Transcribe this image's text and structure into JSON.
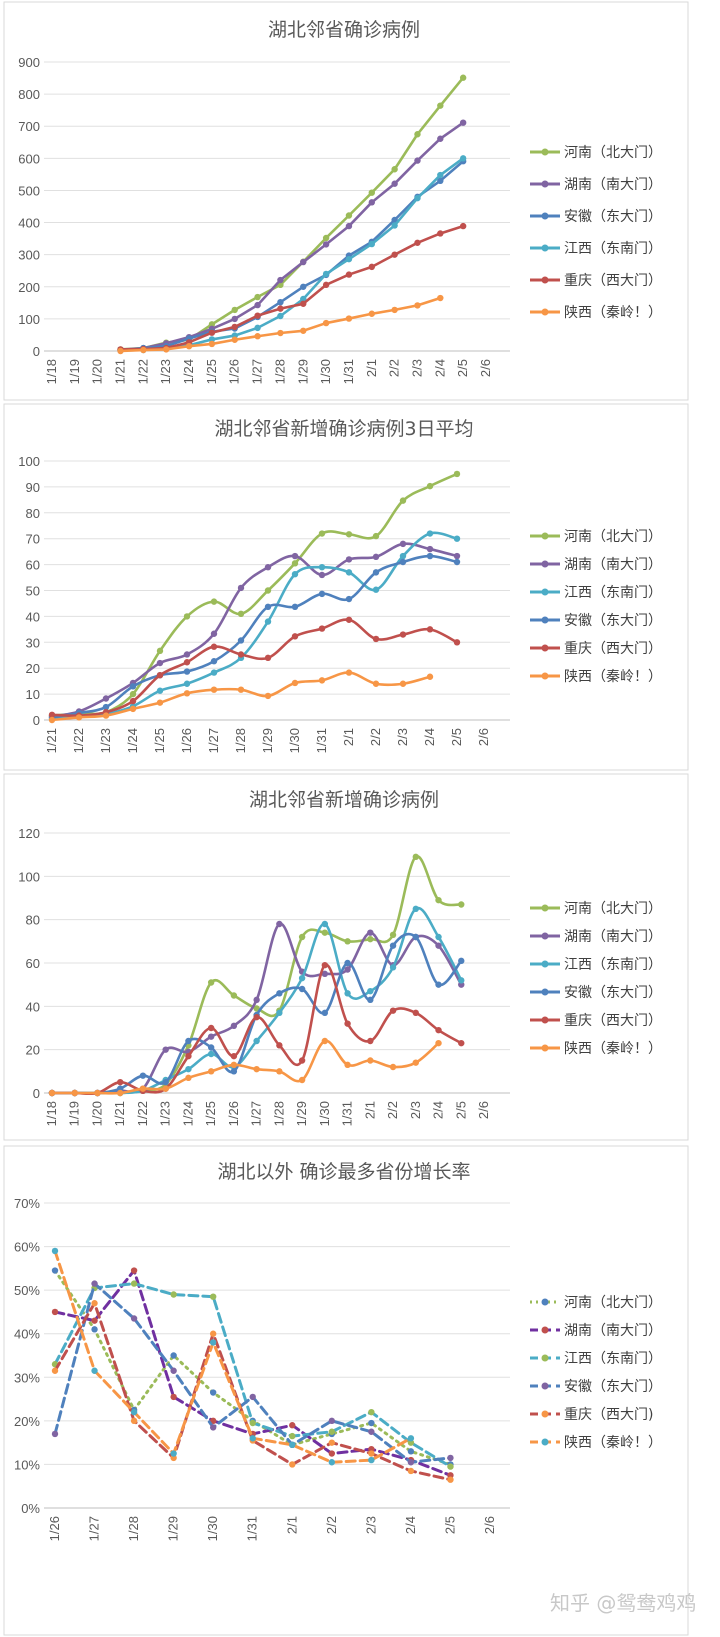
{
  "watermark": "知乎 @鸳鸯鸡鸡",
  "chart_data": [
    {
      "type": "line",
      "title": "湖北邻省确诊病例",
      "categories": [
        "1/18",
        "1/19",
        "1/20",
        "1/21",
        "1/22",
        "1/23",
        "1/24",
        "1/25",
        "1/26",
        "1/27",
        "1/28",
        "1/29",
        "1/30",
        "1/31",
        "2/1",
        "2/2",
        "2/3",
        "2/4",
        "2/5",
        "2/6"
      ],
      "ylim": [
        0,
        900
      ],
      "yticks": [
        0,
        100,
        200,
        300,
        400,
        500,
        600,
        700,
        800,
        900
      ],
      "ytick_labels": [
        "0",
        "100",
        "200",
        "300",
        "400",
        "500",
        "600",
        "700",
        "800",
        "900"
      ],
      "grid": true,
      "legend": "right",
      "series": [
        {
          "name": "河南（北大门）",
          "color": "#9BBB59",
          "values": [
            null,
            null,
            null,
            5,
            9,
            26,
            35,
            83,
            128,
            168,
            206,
            278,
            352,
            422,
            493,
            566,
            675,
            764,
            851,
            null
          ]
        },
        {
          "name": "湖南（南大门）",
          "color": "#8064A2",
          "values": [
            null,
            null,
            null,
            4,
            9,
            24,
            43,
            69,
            100,
            143,
            221,
            277,
            332,
            389,
            463,
            521,
            593,
            661,
            711,
            null
          ]
        },
        {
          "name": "安徽（东大门）",
          "color": "#4F81BD",
          "values": [
            null,
            null,
            null,
            1,
            9,
            15,
            39,
            60,
            70,
            106,
            152,
            200,
            237,
            297,
            340,
            408,
            480,
            530,
            591,
            null
          ]
        },
        {
          "name": "江西（东南门）",
          "color": "#4BACC6",
          "values": [
            null,
            null,
            null,
            2,
            3,
            7,
            18,
            36,
            48,
            72,
            109,
            162,
            240,
            286,
            333,
            391,
            476,
            548,
            600,
            null
          ]
        },
        {
          "name": "重庆（西大门）",
          "color": "#C0504D",
          "values": [
            null,
            null,
            null,
            5,
            6,
            9,
            27,
            57,
            75,
            110,
            132,
            147,
            206,
            238,
            262,
            300,
            337,
            366,
            389,
            null
          ]
        },
        {
          "name": "陕西（秦岭！）",
          "color": "#F79646",
          "values": [
            null,
            null,
            null,
            0,
            3,
            5,
            15,
            22,
            35,
            46,
            56,
            63,
            87,
            101,
            116,
            128,
            142,
            165,
            null,
            null
          ]
        }
      ]
    },
    {
      "type": "line",
      "title": "湖北邻省新增确诊病例3日平均",
      "categories": [
        "1/21",
        "1/22",
        "1/23",
        "1/24",
        "1/25",
        "1/26",
        "1/27",
        "1/28",
        "1/29",
        "1/30",
        "1/31",
        "2/1",
        "2/2",
        "2/3",
        "2/4",
        "2/5",
        "2/6"
      ],
      "ylim": [
        0,
        100
      ],
      "yticks": [
        0,
        10,
        20,
        30,
        40,
        50,
        60,
        70,
        80,
        90,
        100
      ],
      "ytick_labels": [
        "0",
        "10",
        "20",
        "30",
        "40",
        "50",
        "60",
        "70",
        "80",
        "90",
        "100"
      ],
      "grid": true,
      "legend": "right",
      "smooth": true,
      "series": [
        {
          "name": "河南（北大门）",
          "color": "#9BBB59",
          "values": [
            1.7,
            2.5,
            3,
            10,
            26.7,
            40,
            45.7,
            41,
            50,
            60.5,
            72,
            71.7,
            71,
            84.7,
            90.3,
            95,
            null
          ]
        },
        {
          "name": "湖南（南大门）",
          "color": "#8064A2",
          "values": [
            1.3,
            3.3,
            8.3,
            14.3,
            22,
            25.3,
            33.3,
            51,
            59,
            63.3,
            56,
            62,
            63,
            68,
            66,
            63.3,
            null
          ]
        },
        {
          "name": "江西（东南门）",
          "color": "#4BACC6",
          "values": [
            0.7,
            1.3,
            2.3,
            5.3,
            11.3,
            14,
            18.3,
            24,
            38,
            56.3,
            59,
            57,
            50.3,
            63.3,
            72,
            70,
            null
          ]
        },
        {
          "name": "安徽（东大门）",
          "color": "#4F81BD",
          "values": [
            1,
            2.7,
            5,
            13,
            17.3,
            18.7,
            22.7,
            30.7,
            43.7,
            43.7,
            48.7,
            46.7,
            57,
            61,
            63.3,
            61,
            null
          ]
        },
        {
          "name": "重庆（西大门）",
          "color": "#C0504D",
          "values": [
            2,
            1.7,
            3,
            7.3,
            17.3,
            22.3,
            28.3,
            25.3,
            24,
            32.3,
            35.3,
            38.7,
            31.3,
            33,
            35,
            30,
            null
          ]
        },
        {
          "name": "陕西（秦岭！）",
          "color": "#F79646",
          "values": [
            0,
            1,
            1.7,
            4.3,
            6.7,
            10.3,
            11.7,
            11.7,
            9.3,
            14.3,
            15.3,
            18.3,
            14,
            14,
            16.7,
            null,
            null
          ]
        }
      ]
    },
    {
      "type": "line",
      "title": "湖北邻省新增确诊病例",
      "categories": [
        "1/18",
        "1/19",
        "1/20",
        "1/21",
        "1/22",
        "1/23",
        "1/24",
        "1/25",
        "1/26",
        "1/27",
        "1/28",
        "1/29",
        "1/30",
        "1/31",
        "2/1",
        "2/2",
        "2/3",
        "2/4",
        "2/5",
        "2/6"
      ],
      "ylim": [
        0,
        120
      ],
      "yticks": [
        0,
        20,
        40,
        60,
        80,
        100,
        120
      ],
      "ytick_labels": [
        "0",
        "20",
        "40",
        "60",
        "80",
        "100",
        "120"
      ],
      "grid": true,
      "legend": "right",
      "smooth": true,
      "series": [
        {
          "name": "河南（北大门）",
          "color": "#9BBB59",
          "values": [
            0,
            0,
            0,
            0,
            1,
            4,
            22,
            51,
            45,
            39,
            38,
            72,
            74,
            70,
            71,
            73,
            109,
            89,
            87,
            null
          ]
        },
        {
          "name": "湖南（南大门）",
          "color": "#8064A2",
          "values": [
            0,
            0,
            0,
            1,
            2,
            20,
            19,
            26,
            31,
            43,
            78,
            56,
            55,
            57,
            74,
            59,
            72,
            68,
            50,
            null
          ]
        },
        {
          "name": "江西（东南门）",
          "color": "#4BACC6",
          "values": [
            0,
            0,
            0,
            0,
            1,
            6,
            11,
            18,
            12,
            24,
            37,
            53,
            78,
            46,
            47,
            58,
            85,
            72,
            52,
            null
          ]
        },
        {
          "name": "安徽（东大门）",
          "color": "#4F81BD",
          "values": [
            0,
            0,
            0,
            2,
            8,
            5,
            24,
            21,
            10,
            36,
            46,
            48,
            37,
            60,
            43,
            68,
            72,
            50,
            61,
            null
          ]
        },
        {
          "name": "重庆（西大门）",
          "color": "#C0504D",
          "values": [
            0,
            0,
            0,
            5,
            1,
            2,
            17,
            30,
            17,
            35,
            22,
            15,
            59,
            32,
            24,
            38,
            37,
            29,
            23,
            null
          ]
        },
        {
          "name": "陕西（秦岭！）",
          "color": "#F79646",
          "values": [
            0,
            0,
            0,
            0,
            2,
            2,
            7,
            10,
            13,
            11,
            10,
            6,
            24,
            13,
            15,
            12,
            14,
            23,
            null,
            null
          ]
        }
      ]
    },
    {
      "type": "line",
      "title": "湖北以外 确诊最多省份增长率",
      "categories": [
        "1/26",
        "1/27",
        "1/28",
        "1/29",
        "1/30",
        "1/31",
        "2/1",
        "2/2",
        "2/3",
        "2/4",
        "2/5",
        "2/6"
      ],
      "ylim": [
        0,
        70
      ],
      "yticks": [
        0,
        10,
        20,
        30,
        40,
        50,
        60,
        70
      ],
      "ytick_labels": [
        "0%",
        "10%",
        "20%",
        "30%",
        "40%",
        "50%",
        "60%",
        "70%"
      ],
      "grid": true,
      "legend": "right",
      "series": [
        {
          "name": "河南（北大门）",
          "color": "#9BBB59",
          "marker_color": "#4F81BD",
          "dash": "dot",
          "values": [
            54.5,
            41,
            22.5,
            35,
            26.5,
            20,
            14.5,
            17,
            19.5,
            13,
            10,
            null
          ]
        },
        {
          "name": "湖南（南大门）",
          "color": "#7030A0",
          "marker_color": "#C0504D",
          "dash": "dash",
          "values": [
            45,
            43,
            54.5,
            25.5,
            20,
            17,
            19,
            12.5,
            13.5,
            11,
            7.5,
            null
          ]
        },
        {
          "name": "江西（东南门）",
          "color": "#4BACC6",
          "marker_color": "#9BBB59",
          "dash": "dash",
          "values": [
            33,
            50.5,
            51.5,
            49,
            48.5,
            19.5,
            16.5,
            17.5,
            22,
            15,
            9.5,
            null
          ]
        },
        {
          "name": "安徽（东大门）",
          "color": "#4F81BD",
          "marker_color": "#8064A2",
          "dash": "dash",
          "values": [
            17,
            51.5,
            43.5,
            31.5,
            18.5,
            25.5,
            14.5,
            20,
            17.5,
            10.5,
            11.5,
            null
          ]
        },
        {
          "name": "重庆（西大门)",
          "color": "#C0504D",
          "marker_color": "#F79646",
          "dash": "dash",
          "values": [
            31.5,
            47,
            20,
            11.5,
            40,
            15.5,
            10,
            15,
            12.5,
            8.5,
            6.5,
            null
          ]
        },
        {
          "name": "陕西（秦岭！）",
          "color": "#F79646",
          "marker_color": "#4BACC6",
          "dash": "dash",
          "values": [
            59,
            31.5,
            22,
            12.5,
            38,
            16,
            14.5,
            10.5,
            11,
            16,
            null,
            null
          ]
        }
      ]
    }
  ]
}
